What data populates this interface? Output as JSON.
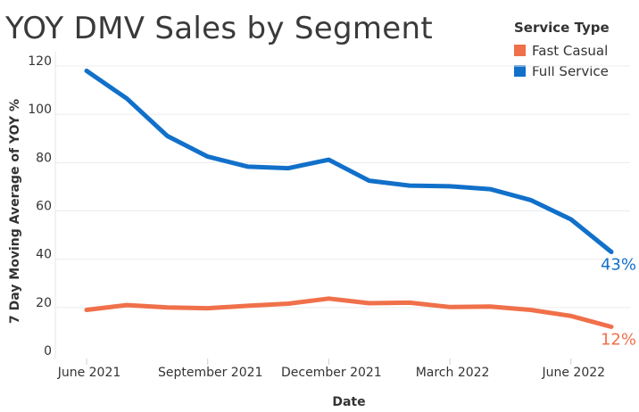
{
  "chart_data": {
    "type": "line",
    "title": "YOY DMV Sales by Segment",
    "xlabel": "Date",
    "ylabel": "7 Day Moving Average of YOY %",
    "ylim": [
      0,
      120
    ],
    "yticks": [
      0,
      20,
      40,
      60,
      80,
      100,
      120
    ],
    "xtick_labels": [
      "June 2021",
      "September 2021",
      "December 2021",
      "March 2022",
      "June 2022"
    ],
    "x_periods": [
      "2021-06",
      "2021-07",
      "2021-08",
      "2021-09",
      "2021-10",
      "2021-11",
      "2021-12",
      "2022-01",
      "2022-02",
      "2022-03",
      "2022-04",
      "2022-05",
      "2022-06",
      "2022-07"
    ],
    "legend_title": "Service Type",
    "legend_position": "top-right",
    "grid": "horizontal",
    "series": [
      {
        "name": "Fast Casual",
        "color": "#f0704a",
        "values": [
          19,
          21,
          20,
          19.7,
          20.7,
          21.6,
          23.7,
          21.8,
          22,
          20.2,
          20.4,
          19,
          16.5,
          12
        ],
        "end_label": "12%"
      },
      {
        "name": "Full Service",
        "color": "#1170c9",
        "values": [
          118,
          106.5,
          91,
          82.5,
          78.3,
          77.7,
          81.2,
          72.5,
          70.5,
          70.2,
          69,
          64.5,
          56.5,
          43
        ],
        "end_label": "43%"
      }
    ]
  }
}
